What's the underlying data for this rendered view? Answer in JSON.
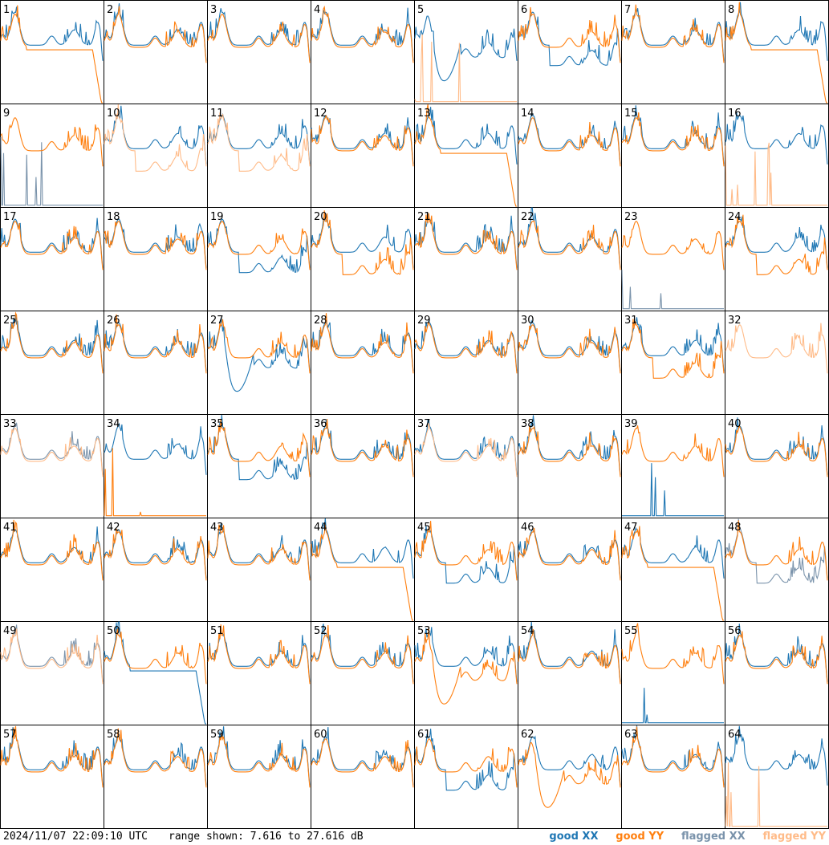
{
  "footer": {
    "timestamp": "2024/11/07 22:09:10 UTC",
    "range_text": "range shown: 7.616 to 27.616 dB"
  },
  "legend": {
    "good_xx": "good XX",
    "good_yy": "good YY",
    "flagged_xx": "flagged XX",
    "flagged_yy": "flagged YY"
  },
  "colors": {
    "good_xx": "#1f77b4",
    "good_yy": "#ff7f0e",
    "flagged_xx": "#7a93ab",
    "flagged_yy": "#ffbb88",
    "border": "#000000"
  },
  "chart_data": {
    "type": "line",
    "ylim": [
      7.616,
      27.616
    ],
    "yunit": "dB",
    "grid": "8x8",
    "tiles": [
      {
        "label": "1",
        "xx": "good",
        "yy": "good",
        "xx_shape": "std",
        "yy_shape": "drop"
      },
      {
        "label": "2",
        "xx": "good",
        "yy": "good",
        "xx_shape": "std",
        "yy_shape": "std"
      },
      {
        "label": "3",
        "xx": "good",
        "yy": "good",
        "xx_shape": "std",
        "yy_shape": "std"
      },
      {
        "label": "4",
        "xx": "good",
        "yy": "good",
        "xx_shape": "std",
        "yy_shape": "std"
      },
      {
        "label": "5",
        "xx": "good",
        "yy": "flagged",
        "xx_shape": "dip",
        "yy_shape": "flat"
      },
      {
        "label": "6",
        "xx": "good",
        "yy": "good",
        "xx_shape": "low",
        "yy_shape": "std"
      },
      {
        "label": "7",
        "xx": "good",
        "yy": "good",
        "xx_shape": "std",
        "yy_shape": "std"
      },
      {
        "label": "8",
        "xx": "good",
        "yy": "good",
        "xx_shape": "std",
        "yy_shape": "drop"
      },
      {
        "label": "9",
        "xx": "flagged",
        "yy": "good",
        "xx_shape": "flat",
        "yy_shape": "std"
      },
      {
        "label": "10",
        "xx": "good",
        "yy": "flagged",
        "xx_shape": "std",
        "yy_shape": "low"
      },
      {
        "label": "11",
        "xx": "good",
        "yy": "flagged",
        "xx_shape": "std",
        "yy_shape": "low"
      },
      {
        "label": "12",
        "xx": "good",
        "yy": "good",
        "xx_shape": "std",
        "yy_shape": "std"
      },
      {
        "label": "13",
        "xx": "good",
        "yy": "good",
        "xx_shape": "std",
        "yy_shape": "drop"
      },
      {
        "label": "14",
        "xx": "good",
        "yy": "good",
        "xx_shape": "std",
        "yy_shape": "std"
      },
      {
        "label": "15",
        "xx": "good",
        "yy": "good",
        "xx_shape": "std",
        "yy_shape": "std"
      },
      {
        "label": "16",
        "xx": "good",
        "yy": "flagged",
        "xx_shape": "std",
        "yy_shape": "flat"
      },
      {
        "label": "17",
        "xx": "good",
        "yy": "good",
        "xx_shape": "std",
        "yy_shape": "std"
      },
      {
        "label": "18",
        "xx": "good",
        "yy": "good",
        "xx_shape": "std",
        "yy_shape": "std"
      },
      {
        "label": "19",
        "xx": "good",
        "yy": "good",
        "xx_shape": "low",
        "yy_shape": "std"
      },
      {
        "label": "20",
        "xx": "good",
        "yy": "good",
        "xx_shape": "std",
        "yy_shape": "low"
      },
      {
        "label": "21",
        "xx": "good",
        "yy": "good",
        "xx_shape": "std",
        "yy_shape": "std"
      },
      {
        "label": "22",
        "xx": "good",
        "yy": "good",
        "xx_shape": "std",
        "yy_shape": "std"
      },
      {
        "label": "23",
        "xx": "flagged",
        "yy": "good",
        "xx_shape": "flat",
        "yy_shape": "std"
      },
      {
        "label": "24",
        "xx": "good",
        "yy": "good",
        "xx_shape": "std",
        "yy_shape": "low"
      },
      {
        "label": "25",
        "xx": "good",
        "yy": "good",
        "xx_shape": "std",
        "yy_shape": "std"
      },
      {
        "label": "26",
        "xx": "good",
        "yy": "good",
        "xx_shape": "std",
        "yy_shape": "std"
      },
      {
        "label": "27",
        "xx": "good",
        "yy": "good",
        "xx_shape": "dip",
        "yy_shape": "std"
      },
      {
        "label": "28",
        "xx": "good",
        "yy": "good",
        "xx_shape": "std",
        "yy_shape": "std"
      },
      {
        "label": "29",
        "xx": "good",
        "yy": "good",
        "xx_shape": "std",
        "yy_shape": "std"
      },
      {
        "label": "30",
        "xx": "good",
        "yy": "good",
        "xx_shape": "std",
        "yy_shape": "std"
      },
      {
        "label": "31",
        "xx": "good",
        "yy": "good",
        "xx_shape": "std",
        "yy_shape": "low"
      },
      {
        "label": "32",
        "xx": "none",
        "yy": "flagged",
        "xx_shape": "none",
        "yy_shape": "std"
      },
      {
        "label": "33",
        "xx": "flagged",
        "yy": "flagged",
        "xx_shape": "std",
        "yy_shape": "std"
      },
      {
        "label": "34",
        "xx": "good",
        "yy": "good",
        "xx_shape": "std",
        "yy_shape": "flat"
      },
      {
        "label": "35",
        "xx": "good",
        "yy": "good",
        "xx_shape": "low",
        "yy_shape": "std"
      },
      {
        "label": "36",
        "xx": "good",
        "yy": "good",
        "xx_shape": "std",
        "yy_shape": "std"
      },
      {
        "label": "37",
        "xx": "good",
        "yy": "flagged",
        "xx_shape": "std",
        "yy_shape": "std"
      },
      {
        "label": "38",
        "xx": "good",
        "yy": "good",
        "xx_shape": "std",
        "yy_shape": "std"
      },
      {
        "label": "39",
        "xx": "good",
        "yy": "good",
        "xx_shape": "flat",
        "yy_shape": "std"
      },
      {
        "label": "40",
        "xx": "good",
        "yy": "good",
        "xx_shape": "std",
        "yy_shape": "std"
      },
      {
        "label": "41",
        "xx": "good",
        "yy": "good",
        "xx_shape": "std",
        "yy_shape": "std"
      },
      {
        "label": "42",
        "xx": "good",
        "yy": "good",
        "xx_shape": "std",
        "yy_shape": "std"
      },
      {
        "label": "43",
        "xx": "good",
        "yy": "good",
        "xx_shape": "std",
        "yy_shape": "std"
      },
      {
        "label": "44",
        "xx": "good",
        "yy": "good",
        "xx_shape": "std",
        "yy_shape": "drop"
      },
      {
        "label": "45",
        "xx": "good",
        "yy": "good",
        "xx_shape": "low",
        "yy_shape": "std"
      },
      {
        "label": "46",
        "xx": "good",
        "yy": "good",
        "xx_shape": "std",
        "yy_shape": "std"
      },
      {
        "label": "47",
        "xx": "good",
        "yy": "good",
        "xx_shape": "std",
        "yy_shape": "drop"
      },
      {
        "label": "48",
        "xx": "flagged",
        "yy": "good",
        "xx_shape": "low",
        "yy_shape": "std"
      },
      {
        "label": "49",
        "xx": "flagged",
        "yy": "flagged",
        "xx_shape": "std",
        "yy_shape": "std"
      },
      {
        "label": "50",
        "xx": "good",
        "yy": "good",
        "xx_shape": "drop",
        "yy_shape": "std"
      },
      {
        "label": "51",
        "xx": "good",
        "yy": "good",
        "xx_shape": "std",
        "yy_shape": "std"
      },
      {
        "label": "52",
        "xx": "good",
        "yy": "good",
        "xx_shape": "std",
        "yy_shape": "std"
      },
      {
        "label": "53",
        "xx": "good",
        "yy": "good",
        "xx_shape": "std",
        "yy_shape": "dip"
      },
      {
        "label": "54",
        "xx": "good",
        "yy": "good",
        "xx_shape": "std",
        "yy_shape": "std"
      },
      {
        "label": "55",
        "xx": "good",
        "yy": "good",
        "xx_shape": "flat",
        "yy_shape": "std"
      },
      {
        "label": "56",
        "xx": "good",
        "yy": "good",
        "xx_shape": "std",
        "yy_shape": "std"
      },
      {
        "label": "57",
        "xx": "good",
        "yy": "good",
        "xx_shape": "std",
        "yy_shape": "std"
      },
      {
        "label": "58",
        "xx": "good",
        "yy": "good",
        "xx_shape": "std",
        "yy_shape": "std"
      },
      {
        "label": "59",
        "xx": "good",
        "yy": "good",
        "xx_shape": "std",
        "yy_shape": "std"
      },
      {
        "label": "60",
        "xx": "good",
        "yy": "good",
        "xx_shape": "std",
        "yy_shape": "std"
      },
      {
        "label": "61",
        "xx": "good",
        "yy": "good",
        "xx_shape": "low",
        "yy_shape": "std"
      },
      {
        "label": "62",
        "xx": "good",
        "yy": "good",
        "xx_shape": "std",
        "yy_shape": "dip"
      },
      {
        "label": "63",
        "xx": "good",
        "yy": "good",
        "xx_shape": "std",
        "yy_shape": "std"
      },
      {
        "label": "64",
        "xx": "good",
        "yy": "flagged",
        "xx_shape": "std",
        "yy_shape": "flat"
      }
    ]
  }
}
